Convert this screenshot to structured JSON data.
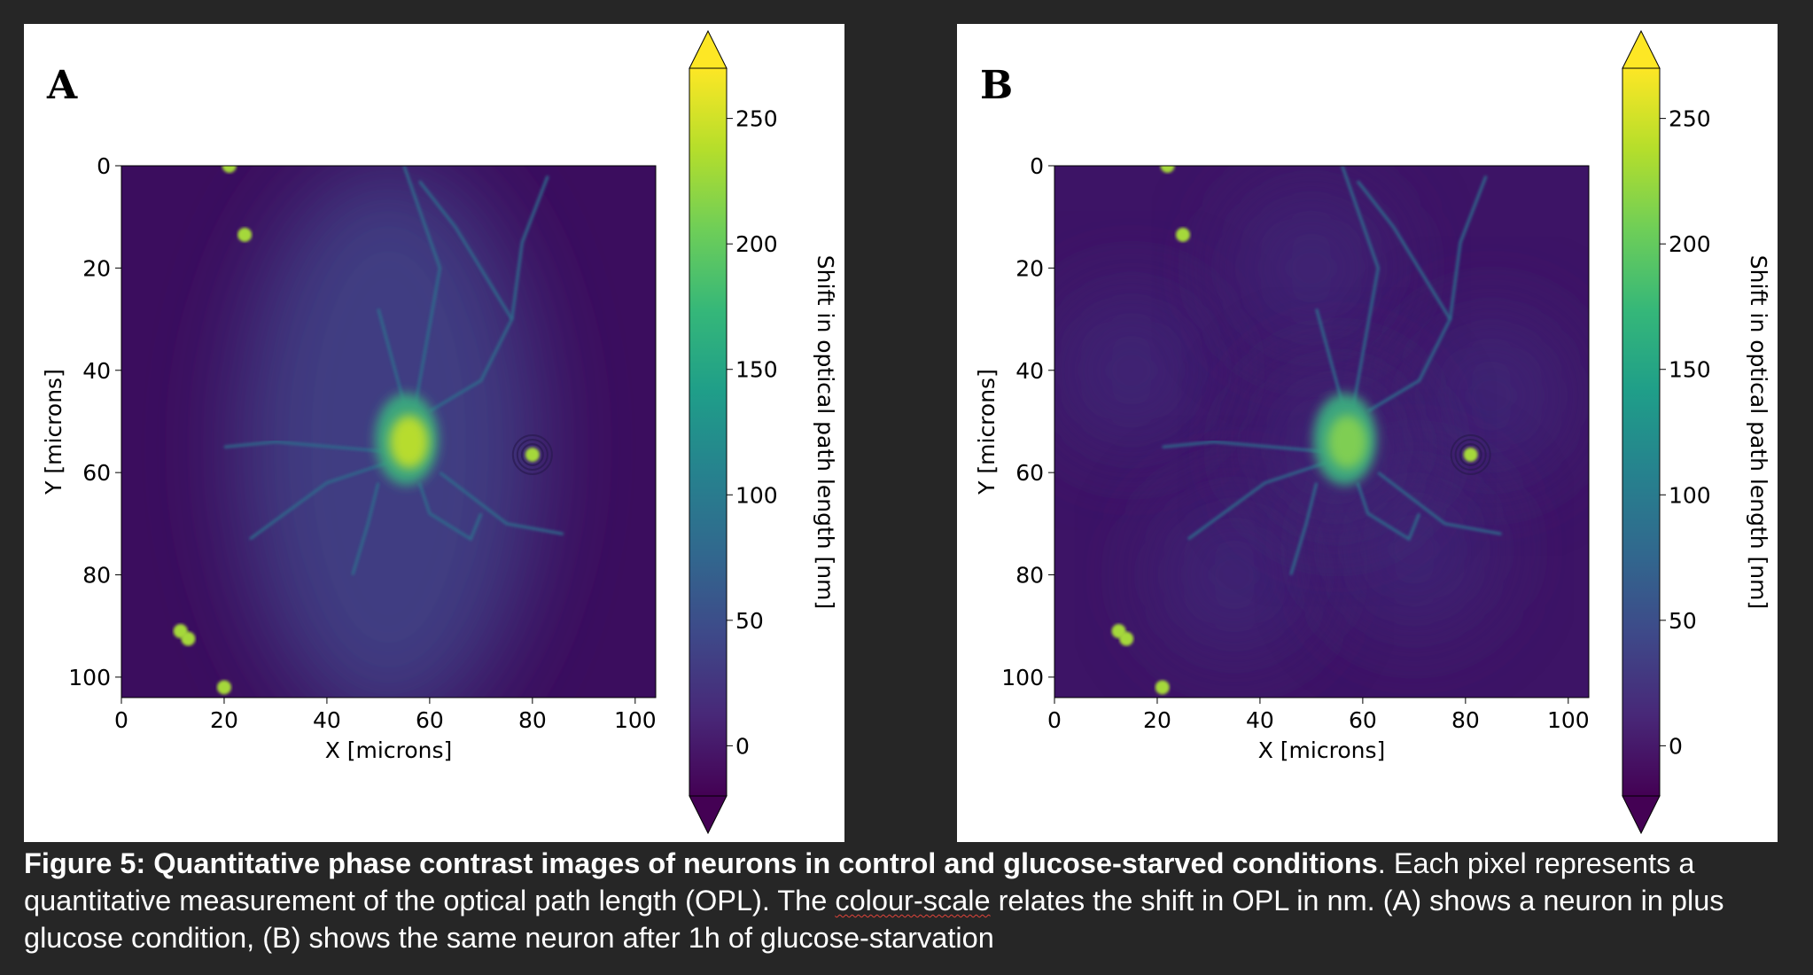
{
  "panels": [
    {
      "label": "A",
      "xlabel": "X [microns]",
      "ylabel": "Y [microns]",
      "cbar_label": "Shift in optical path length [nm]"
    },
    {
      "label": "B",
      "xlabel": "X [microns]",
      "ylabel": "Y [microns]",
      "cbar_label": "Shift in optical path length [nm]"
    }
  ],
  "chart_data": [
    {
      "type": "heatmap",
      "title": "A",
      "xlabel": "X [microns]",
      "ylabel": "Y [microns]",
      "xlim": [
        0,
        104
      ],
      "ylim": [
        104,
        0
      ],
      "xticks": [
        "0",
        "20",
        "40",
        "60",
        "80",
        "100"
      ],
      "yticks": [
        "0",
        "20",
        "40",
        "60",
        "80",
        "100"
      ],
      "colorbar": {
        "label": "Shift in optical path length [nm]",
        "range": [
          -20,
          270
        ],
        "ticks": [
          "0",
          "50",
          "100",
          "150",
          "200",
          "250"
        ],
        "colormap": "viridis",
        "extend": "both"
      }
    },
    {
      "type": "heatmap",
      "title": "B",
      "xlabel": "X [microns]",
      "ylabel": "Y [microns]",
      "xlim": [
        0,
        104
      ],
      "ylim": [
        104,
        0
      ],
      "xticks": [
        "0",
        "20",
        "40",
        "60",
        "80",
        "100"
      ],
      "yticks": [
        "0",
        "20",
        "40",
        "60",
        "80",
        "100"
      ],
      "colorbar": {
        "label": "Shift in optical path length [nm]",
        "range": [
          -20,
          270
        ],
        "ticks": [
          "0",
          "50",
          "100",
          "150",
          "200",
          "250"
        ],
        "colormap": "viridis",
        "extend": "both"
      }
    }
  ],
  "caption": {
    "bold": "Figure 5: Quantitative phase contrast images of neurons in control and glucose-starved conditions",
    "part1": ".  Each pixel represents a quantitative measurement of the optical path length (OPL). The ",
    "misspelled": "colour-scale",
    "part2": " relates the shift in OPL in nm. (A) shows a neuron in plus glucose condition, (B) shows the same neuron after 1h of glucose-starvation"
  }
}
